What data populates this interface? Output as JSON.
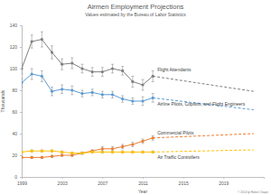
{
  "chart_data": {
    "type": "line",
    "title": "Airmen Employment Projections",
    "subtitle": "Values estimated by the Bureau of Labor Statistics",
    "x_label": "Year",
    "y_label": "Thousands",
    "annotations": [
      "© 2014 by Robert Chapin"
    ],
    "x": [
      1999,
      2000,
      2001,
      2002,
      2003,
      2004,
      2005,
      2006,
      2007,
      2008,
      2009,
      2010,
      2011,
      2012,
      2022
    ],
    "xlim": [
      1999,
      2023
    ],
    "xticks": [
      1999,
      2003,
      2007,
      2011,
      2015,
      2019
    ],
    "ylim": [
      0,
      140
    ],
    "yticks": [
      0,
      20,
      40,
      60,
      80,
      100,
      120,
      140
    ],
    "grid": false,
    "series": [
      {
        "name": "Flight Attendants",
        "color": "#7f7f7f",
        "marker": "circle",
        "line_style": "solid",
        "values": [
          100,
          125,
          127,
          115,
          104,
          105,
          100,
          97,
          97,
          100,
          98,
          88,
          85,
          93,
          null
        ],
        "errors": [
          5,
          6,
          7,
          6,
          5,
          5,
          4,
          4,
          4,
          4,
          4,
          5,
          5,
          5,
          null
        ]
      },
      {
        "name": "Airline Pilots, Copilots, and Flight Engineers",
        "color": "#5b9bd5",
        "marker": "circle",
        "line_style": "solid",
        "values": [
          87,
          95,
          93,
          79,
          81,
          80,
          77,
          78,
          76,
          76,
          72,
          70,
          70,
          73,
          null
        ],
        "errors": [
          4,
          5,
          5,
          4,
          4,
          4,
          3,
          3,
          3,
          3,
          3,
          3,
          4,
          4,
          null
        ]
      },
      {
        "name": "Commercial Pilots",
        "color": "#ed7d31",
        "marker": "circle",
        "line_style": "solid",
        "values": [
          18,
          18,
          18,
          19,
          20,
          20,
          22,
          24,
          26,
          26,
          28,
          30,
          33,
          36,
          null
        ],
        "errors": [
          1,
          1,
          1,
          1,
          1,
          1,
          1,
          1,
          2,
          2,
          2,
          2,
          2,
          2,
          null
        ]
      },
      {
        "name": "Air Traffic Controllers",
        "color": "#ffc000",
        "marker": "circle",
        "line_style": "solid",
        "values": [
          23,
          24,
          24,
          24,
          23,
          22,
          22,
          23,
          23,
          23,
          23,
          23,
          23,
          23,
          null
        ],
        "errors": [
          1,
          1,
          1,
          1,
          1,
          1,
          1,
          1,
          1,
          1,
          1,
          1,
          1,
          1,
          null
        ]
      },
      {
        "color": "#7f7f7f",
        "marker": "none",
        "line_style": "dashed",
        "values": [
          null,
          null,
          null,
          null,
          null,
          null,
          null,
          null,
          null,
          null,
          null,
          null,
          null,
          93,
          79
        ]
      },
      {
        "color": "#5b9bd5",
        "marker": "none",
        "line_style": "dashed",
        "values": [
          null,
          null,
          null,
          null,
          null,
          null,
          null,
          null,
          null,
          null,
          null,
          null,
          null,
          73,
          62
        ]
      },
      {
        "color": "#ed7d31",
        "marker": "none",
        "line_style": "dashed",
        "values": [
          null,
          null,
          null,
          null,
          null,
          null,
          null,
          null,
          null,
          null,
          null,
          null,
          null,
          36,
          40
        ]
      },
      {
        "color": "#ffc000",
        "marker": "none",
        "line_style": "dashed",
        "values": [
          null,
          null,
          null,
          null,
          null,
          null,
          null,
          null,
          null,
          null,
          null,
          null,
          null,
          23,
          25
        ]
      }
    ]
  }
}
